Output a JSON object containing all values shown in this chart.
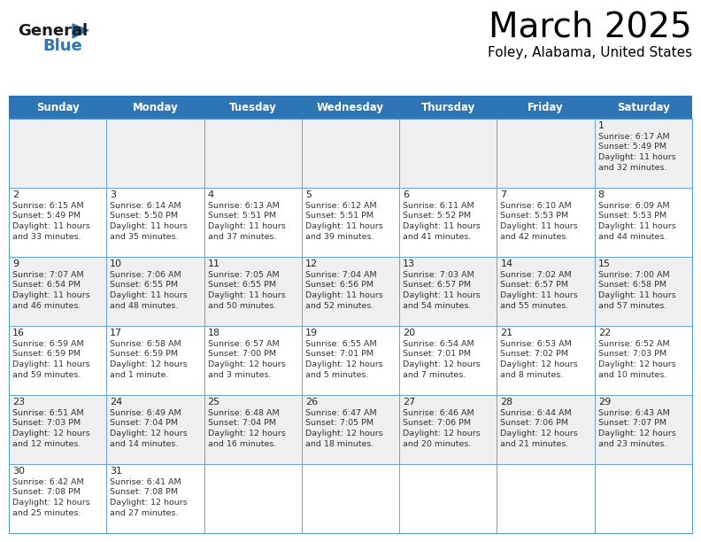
{
  "title": "March 2025",
  "subtitle": "Foley, Alabama, United States",
  "days_of_week": [
    "Sunday",
    "Monday",
    "Tuesday",
    "Wednesday",
    "Thursday",
    "Friday",
    "Saturday"
  ],
  "header_bg": "#2E75B6",
  "header_text": "#FFFFFF",
  "cell_bg_light": "#EFEFEF",
  "cell_bg_white": "#FFFFFF",
  "border_color": "#5B9BD5",
  "title_color": "#000000",
  "day_number_color": "#222222",
  "cell_text_color": "#333333",
  "logo_black": "#1a1a1a",
  "logo_blue": "#2E75B6",
  "calendar_data": [
    [
      null,
      null,
      null,
      null,
      null,
      null,
      {
        "day": 1,
        "sunrise": "6:17 AM",
        "sunset": "5:49 PM",
        "daylight": "11 hours and 32 minutes."
      }
    ],
    [
      {
        "day": 2,
        "sunrise": "6:15 AM",
        "sunset": "5:49 PM",
        "daylight": "11 hours and 33 minutes."
      },
      {
        "day": 3,
        "sunrise": "6:14 AM",
        "sunset": "5:50 PM",
        "daylight": "11 hours and 35 minutes."
      },
      {
        "day": 4,
        "sunrise": "6:13 AM",
        "sunset": "5:51 PM",
        "daylight": "11 hours and 37 minutes."
      },
      {
        "day": 5,
        "sunrise": "6:12 AM",
        "sunset": "5:51 PM",
        "daylight": "11 hours and 39 minutes."
      },
      {
        "day": 6,
        "sunrise": "6:11 AM",
        "sunset": "5:52 PM",
        "daylight": "11 hours and 41 minutes."
      },
      {
        "day": 7,
        "sunrise": "6:10 AM",
        "sunset": "5:53 PM",
        "daylight": "11 hours and 42 minutes."
      },
      {
        "day": 8,
        "sunrise": "6:09 AM",
        "sunset": "5:53 PM",
        "daylight": "11 hours and 44 minutes."
      }
    ],
    [
      {
        "day": 9,
        "sunrise": "7:07 AM",
        "sunset": "6:54 PM",
        "daylight": "11 hours and 46 minutes."
      },
      {
        "day": 10,
        "sunrise": "7:06 AM",
        "sunset": "6:55 PM",
        "daylight": "11 hours and 48 minutes."
      },
      {
        "day": 11,
        "sunrise": "7:05 AM",
        "sunset": "6:55 PM",
        "daylight": "11 hours and 50 minutes."
      },
      {
        "day": 12,
        "sunrise": "7:04 AM",
        "sunset": "6:56 PM",
        "daylight": "11 hours and 52 minutes."
      },
      {
        "day": 13,
        "sunrise": "7:03 AM",
        "sunset": "6:57 PM",
        "daylight": "11 hours and 54 minutes."
      },
      {
        "day": 14,
        "sunrise": "7:02 AM",
        "sunset": "6:57 PM",
        "daylight": "11 hours and 55 minutes."
      },
      {
        "day": 15,
        "sunrise": "7:00 AM",
        "sunset": "6:58 PM",
        "daylight": "11 hours and 57 minutes."
      }
    ],
    [
      {
        "day": 16,
        "sunrise": "6:59 AM",
        "sunset": "6:59 PM",
        "daylight": "11 hours and 59 minutes."
      },
      {
        "day": 17,
        "sunrise": "6:58 AM",
        "sunset": "6:59 PM",
        "daylight": "12 hours and 1 minute."
      },
      {
        "day": 18,
        "sunrise": "6:57 AM",
        "sunset": "7:00 PM",
        "daylight": "12 hours and 3 minutes."
      },
      {
        "day": 19,
        "sunrise": "6:55 AM",
        "sunset": "7:01 PM",
        "daylight": "12 hours and 5 minutes."
      },
      {
        "day": 20,
        "sunrise": "6:54 AM",
        "sunset": "7:01 PM",
        "daylight": "12 hours and 7 minutes."
      },
      {
        "day": 21,
        "sunrise": "6:53 AM",
        "sunset": "7:02 PM",
        "daylight": "12 hours and 8 minutes."
      },
      {
        "day": 22,
        "sunrise": "6:52 AM",
        "sunset": "7:03 PM",
        "daylight": "12 hours and 10 minutes."
      }
    ],
    [
      {
        "day": 23,
        "sunrise": "6:51 AM",
        "sunset": "7:03 PM",
        "daylight": "12 hours and 12 minutes."
      },
      {
        "day": 24,
        "sunrise": "6:49 AM",
        "sunset": "7:04 PM",
        "daylight": "12 hours and 14 minutes."
      },
      {
        "day": 25,
        "sunrise": "6:48 AM",
        "sunset": "7:04 PM",
        "daylight": "12 hours and 16 minutes."
      },
      {
        "day": 26,
        "sunrise": "6:47 AM",
        "sunset": "7:05 PM",
        "daylight": "12 hours and 18 minutes."
      },
      {
        "day": 27,
        "sunrise": "6:46 AM",
        "sunset": "7:06 PM",
        "daylight": "12 hours and 20 minutes."
      },
      {
        "day": 28,
        "sunrise": "6:44 AM",
        "sunset": "7:06 PM",
        "daylight": "12 hours and 21 minutes."
      },
      {
        "day": 29,
        "sunrise": "6:43 AM",
        "sunset": "7:07 PM",
        "daylight": "12 hours and 23 minutes."
      }
    ],
    [
      {
        "day": 30,
        "sunrise": "6:42 AM",
        "sunset": "7:08 PM",
        "daylight": "12 hours and 25 minutes."
      },
      {
        "day": 31,
        "sunrise": "6:41 AM",
        "sunset": "7:08 PM",
        "daylight": "12 hours and 27 minutes."
      },
      null,
      null,
      null,
      null,
      null
    ]
  ]
}
